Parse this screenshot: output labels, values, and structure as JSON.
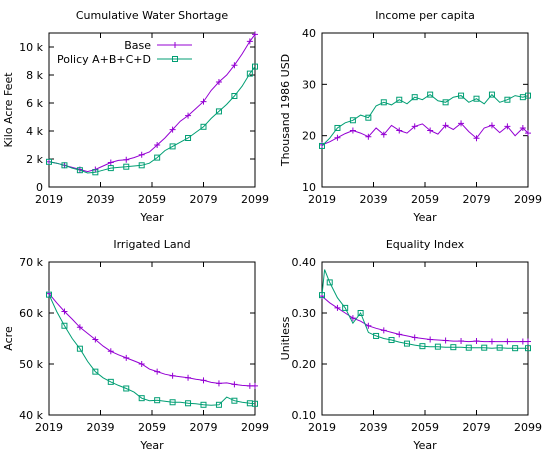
{
  "chart_data": [
    {
      "type": "line",
      "title": "Cumulative Water Shortage",
      "xlabel": "Year",
      "ylabel": "Kilo Acre Feet",
      "xlim": [
        2019,
        2099
      ],
      "ylim": [
        0,
        11000
      ],
      "xticks": [
        2019,
        2039,
        2059,
        2079,
        2099
      ],
      "yticks": [
        0,
        2000,
        4000,
        6000,
        8000,
        10000
      ],
      "ytick_labels": [
        "0",
        "2 k",
        "4 k",
        "6 k",
        "8 k",
        "10 k"
      ],
      "legend": "top-left",
      "series": [
        {
          "name": "Base",
          "color": "#9400d3",
          "marker": "plus",
          "x": [
            2019,
            2022,
            2025,
            2028,
            2031,
            2034,
            2037,
            2040,
            2043,
            2046,
            2049,
            2052,
            2055,
            2058,
            2061,
            2064,
            2067,
            2070,
            2073,
            2076,
            2079,
            2082,
            2085,
            2088,
            2091,
            2094,
            2097,
            2099
          ],
          "y": [
            1800,
            1700,
            1550,
            1400,
            1250,
            1100,
            1250,
            1500,
            1750,
            1900,
            1950,
            2100,
            2300,
            2500,
            3000,
            3500,
            4100,
            4700,
            5100,
            5600,
            6100,
            6900,
            7500,
            8000,
            8700,
            9500,
            10400,
            10900
          ]
        },
        {
          "name": "Policy A+B+C+D",
          "color": "#009e73",
          "marker": "square",
          "x": [
            2019,
            2022,
            2025,
            2028,
            2031,
            2034,
            2037,
            2040,
            2043,
            2046,
            2049,
            2052,
            2055,
            2058,
            2061,
            2064,
            2067,
            2070,
            2073,
            2076,
            2079,
            2082,
            2085,
            2088,
            2091,
            2094,
            2097,
            2099
          ],
          "y": [
            1800,
            1700,
            1550,
            1350,
            1200,
            1000,
            1050,
            1200,
            1350,
            1400,
            1450,
            1500,
            1550,
            1700,
            2100,
            2600,
            2900,
            3200,
            3500,
            3900,
            4300,
            4900,
            5400,
            5900,
            6500,
            7200,
            8100,
            8600
          ]
        }
      ]
    },
    {
      "type": "line",
      "title": "Income per capita",
      "xlabel": "Year",
      "ylabel": "Thousand 1986 USD",
      "xlim": [
        2019,
        2099
      ],
      "ylim": [
        10,
        40
      ],
      "xticks": [
        2019,
        2039,
        2059,
        2079,
        2099
      ],
      "yticks": [
        10,
        20,
        30,
        40
      ],
      "ytick_labels": [
        "10",
        "20",
        "30",
        "40"
      ],
      "series": [
        {
          "name": "Base",
          "color": "#9400d3",
          "marker": "plus",
          "x": [
            2019,
            2022,
            2025,
            2028,
            2031,
            2034,
            2037,
            2040,
            2043,
            2046,
            2049,
            2052,
            2055,
            2058,
            2061,
            2064,
            2067,
            2070,
            2073,
            2076,
            2079,
            2082,
            2085,
            2088,
            2091,
            2094,
            2097,
            2099
          ],
          "y": [
            18.2,
            18.8,
            19.6,
            20.4,
            21.0,
            20.5,
            19.8,
            21.5,
            20.2,
            22.0,
            21.0,
            20.5,
            21.8,
            22.3,
            21.0,
            20.3,
            22.0,
            21.2,
            22.4,
            20.8,
            19.5,
            21.5,
            22.0,
            20.6,
            21.8,
            20.0,
            21.5,
            20.5
          ]
        },
        {
          "name": "Policy A+B+C+D",
          "color": "#009e73",
          "marker": "square",
          "x": [
            2019,
            2022,
            2025,
            2028,
            2031,
            2034,
            2037,
            2040,
            2043,
            2046,
            2049,
            2052,
            2055,
            2058,
            2061,
            2064,
            2067,
            2070,
            2073,
            2076,
            2079,
            2082,
            2085,
            2088,
            2091,
            2094,
            2097,
            2099
          ],
          "y": [
            18.0,
            19.5,
            21.5,
            22.5,
            23.0,
            24.0,
            23.5,
            25.8,
            26.5,
            26.0,
            27.0,
            26.2,
            27.5,
            27.0,
            28.0,
            26.8,
            26.5,
            27.5,
            27.8,
            26.5,
            27.2,
            26.2,
            28.0,
            26.5,
            27.0,
            27.8,
            27.5,
            27.8
          ]
        }
      ]
    },
    {
      "type": "line",
      "title": "Irrigated Land",
      "xlabel": "Year",
      "ylabel": "Acre",
      "xlim": [
        2019,
        2099
      ],
      "ylim": [
        40000,
        70000
      ],
      "xticks": [
        2019,
        2039,
        2059,
        2079,
        2099
      ],
      "yticks": [
        40000,
        50000,
        60000,
        70000
      ],
      "ytick_labels": [
        "40 k",
        "50 k",
        "60 k",
        "70 k"
      ],
      "series": [
        {
          "name": "Base",
          "color": "#9400d3",
          "marker": "plus",
          "x": [
            2019,
            2022,
            2025,
            2028,
            2031,
            2034,
            2037,
            2040,
            2043,
            2046,
            2049,
            2052,
            2055,
            2058,
            2061,
            2064,
            2067,
            2070,
            2073,
            2076,
            2079,
            2082,
            2085,
            2088,
            2091,
            2094,
            2097,
            2099
          ],
          "y": [
            63800,
            62000,
            60300,
            58800,
            57200,
            56000,
            54800,
            53500,
            52500,
            51800,
            51200,
            50600,
            50000,
            49000,
            48500,
            48000,
            47700,
            47500,
            47300,
            47000,
            46800,
            46400,
            46200,
            46300,
            46000,
            45800,
            45700,
            45700
          ]
        },
        {
          "name": "Policy A+B+C+D",
          "color": "#009e73",
          "marker": "square",
          "x": [
            2019,
            2022,
            2025,
            2028,
            2031,
            2034,
            2037,
            2040,
            2043,
            2046,
            2049,
            2052,
            2055,
            2058,
            2061,
            2064,
            2067,
            2070,
            2073,
            2076,
            2079,
            2082,
            2085,
            2088,
            2091,
            2094,
            2097,
            2099
          ],
          "y": [
            63600,
            60300,
            57500,
            55000,
            53000,
            50500,
            48500,
            47300,
            46500,
            45800,
            45200,
            44500,
            43300,
            42800,
            42900,
            42700,
            42500,
            42500,
            42300,
            42200,
            42000,
            41900,
            42000,
            43500,
            42800,
            42500,
            42300,
            42200
          ]
        }
      ]
    },
    {
      "type": "line",
      "title": "Equality Index",
      "xlabel": "Year",
      "ylabel": "Unitless",
      "xlim": [
        2019,
        2099
      ],
      "ylim": [
        0.1,
        0.4
      ],
      "xticks": [
        2019,
        2039,
        2059,
        2079,
        2099
      ],
      "yticks": [
        0.1,
        0.2,
        0.3,
        0.4
      ],
      "ytick_labels": [
        "0.10",
        "0.20",
        "0.30",
        "0.40"
      ],
      "series": [
        {
          "name": "Base",
          "color": "#9400d3",
          "marker": "plus",
          "x": [
            2019,
            2022,
            2025,
            2028,
            2031,
            2034,
            2037,
            2040,
            2043,
            2046,
            2049,
            2052,
            2055,
            2058,
            2061,
            2064,
            2067,
            2070,
            2073,
            2076,
            2079,
            2082,
            2085,
            2088,
            2091,
            2094,
            2097,
            2099
          ],
          "y": [
            0.333,
            0.32,
            0.31,
            0.3,
            0.29,
            0.284,
            0.275,
            0.27,
            0.266,
            0.262,
            0.258,
            0.255,
            0.252,
            0.25,
            0.248,
            0.247,
            0.246,
            0.245,
            0.245,
            0.244,
            0.245,
            0.244,
            0.244,
            0.244,
            0.244,
            0.244,
            0.244,
            0.244
          ]
        },
        {
          "name": "Policy A+B+C+D",
          "color": "#009e73",
          "marker": "square",
          "x": [
            2019,
            2020,
            2022,
            2025,
            2028,
            2031,
            2034,
            2037,
            2040,
            2043,
            2046,
            2049,
            2052,
            2055,
            2058,
            2061,
            2064,
            2067,
            2070,
            2073,
            2076,
            2079,
            2082,
            2085,
            2088,
            2091,
            2094,
            2097,
            2099
          ],
          "y": [
            0.335,
            0.385,
            0.36,
            0.33,
            0.31,
            0.28,
            0.3,
            0.262,
            0.255,
            0.25,
            0.247,
            0.243,
            0.24,
            0.237,
            0.235,
            0.234,
            0.234,
            0.233,
            0.233,
            0.233,
            0.232,
            0.232,
            0.232,
            0.231,
            0.232,
            0.231,
            0.231,
            0.231,
            0.231
          ]
        }
      ]
    }
  ]
}
